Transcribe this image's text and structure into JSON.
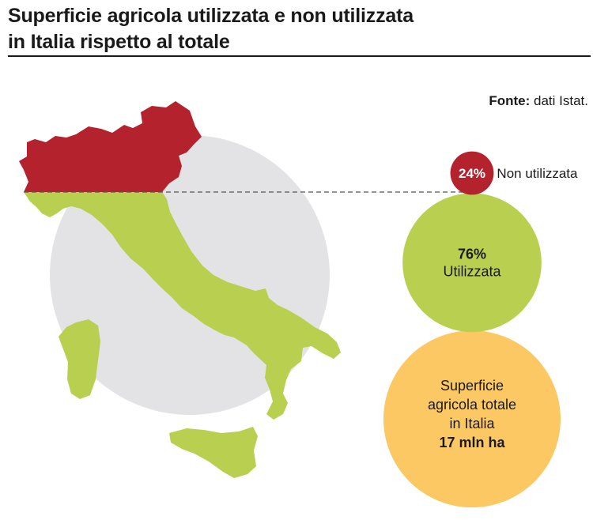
{
  "title_line1": "Superficie agricola utilizzata e non utilizzata",
  "title_line2": "in Italia rispetto al totale",
  "source": {
    "label": "Fonte:",
    "text": "dati Istat."
  },
  "chart_data": {
    "type": "bubble",
    "total": {
      "value": 17,
      "unit": "mln ha",
      "label_lines": [
        "Superficie",
        "agricola totale",
        "in Italia"
      ],
      "value_text": "17 mln ha"
    },
    "parts": [
      {
        "name": "Non utilizzata",
        "share": 24,
        "share_text": "24%"
      },
      {
        "name": "Utilizzata",
        "share": 76,
        "share_text": "76%"
      }
    ]
  },
  "colors": {
    "non_utilizzata": "#b3222d",
    "utilizzata": "#b9cf50",
    "totale": "#fcc864",
    "background_circle": "#e3e3e5",
    "dashed_line": "#555555"
  }
}
